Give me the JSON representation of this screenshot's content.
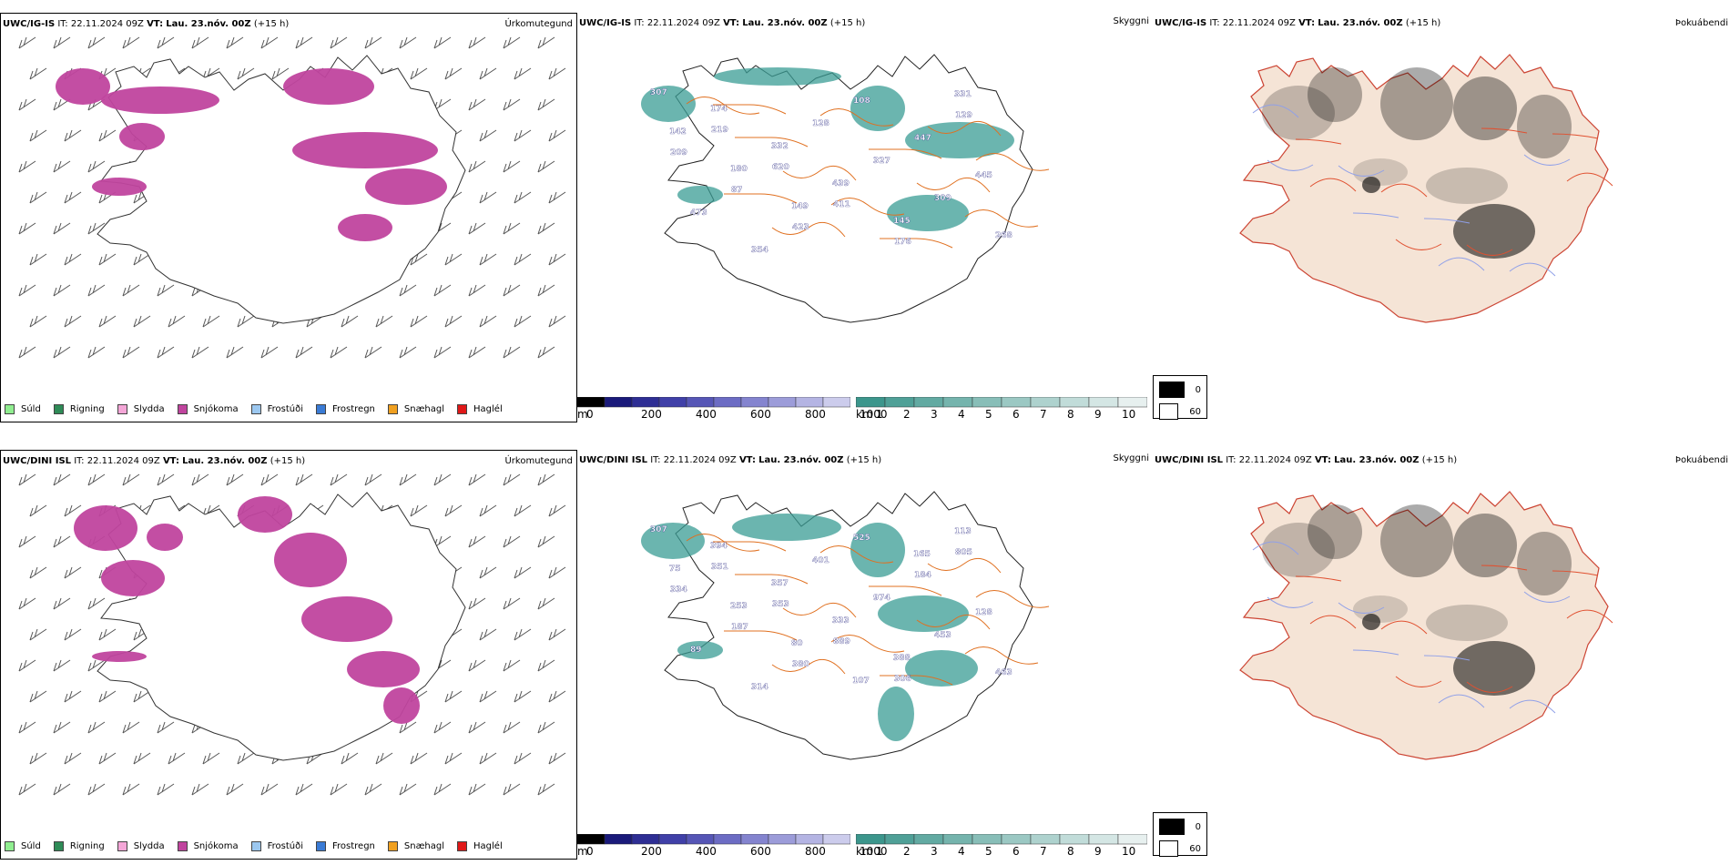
{
  "panels": {
    "top": {
      "model": "UWC/IG-IS",
      "it_label": "IT:",
      "it_value": "22.11.2024 09Z",
      "vt_label": "VT:",
      "vt_value": "Lau. 23.nóv. 00Z",
      "lead": "(+15 h)"
    },
    "bottom": {
      "model": "UWC/DINI ISL",
      "it_label": "IT:",
      "it_value": "22.11.2024 09Z",
      "vt_label": "VT:",
      "vt_value": "Lau. 23.nóv. 00Z",
      "lead": "(+15 h)"
    }
  },
  "fields": {
    "precip_type": "Úrkomutegund",
    "visibility": "Skyggni",
    "fog": "Þokuábendi"
  },
  "precip_legend": [
    {
      "label": "Súld",
      "color": "#90ee90"
    },
    {
      "label": "Rigning",
      "color": "#2e8b57"
    },
    {
      "label": "Slydda",
      "color": "#f4a6d7"
    },
    {
      "label": "Snjókoma",
      "color": "#c0449e"
    },
    {
      "label": "Frostúði",
      "color": "#9cc8f0"
    },
    {
      "label": "Frostregn",
      "color": "#3a7bd5"
    },
    {
      "label": "Snæhagl",
      "color": "#f0a020"
    },
    {
      "label": "Haglél",
      "color": "#e01818"
    }
  ],
  "cbar_m": {
    "unit": "m",
    "ticks": [
      "0",
      "200",
      "400",
      "600",
      "800",
      "1000"
    ]
  },
  "cbar_km": {
    "unit": "km",
    "ticks": [
      "1",
      "2",
      "3",
      "4",
      "5",
      "6",
      "7",
      "8",
      "9",
      "10"
    ]
  },
  "vis_legend": [
    "0",
    "60"
  ],
  "vis_labels_top": [
    "307",
    "219",
    "620",
    "411",
    "176",
    "129",
    "209",
    "87",
    "423",
    "108",
    "447",
    "445",
    "473",
    "354",
    "128",
    "327",
    "309",
    "268",
    "174",
    "332",
    "439",
    "145",
    "331",
    "142",
    "180",
    "149"
  ],
  "vis_labels_bottom": [
    "307",
    "351",
    "353",
    "889",
    "306",
    "805",
    "334",
    "187",
    "380",
    "525",
    "184",
    "128",
    "89",
    "314",
    "401",
    "974",
    "453",
    "463",
    "394",
    "357",
    "333",
    "388",
    "113",
    "75",
    "253",
    "80",
    "107",
    "165"
  ],
  "colors": {
    "snow": "#c0449e",
    "vis_teal": "#3a9c94",
    "vis_blue": "#2a2a9a",
    "land": "#f5e4d6",
    "road": "#e07020"
  }
}
